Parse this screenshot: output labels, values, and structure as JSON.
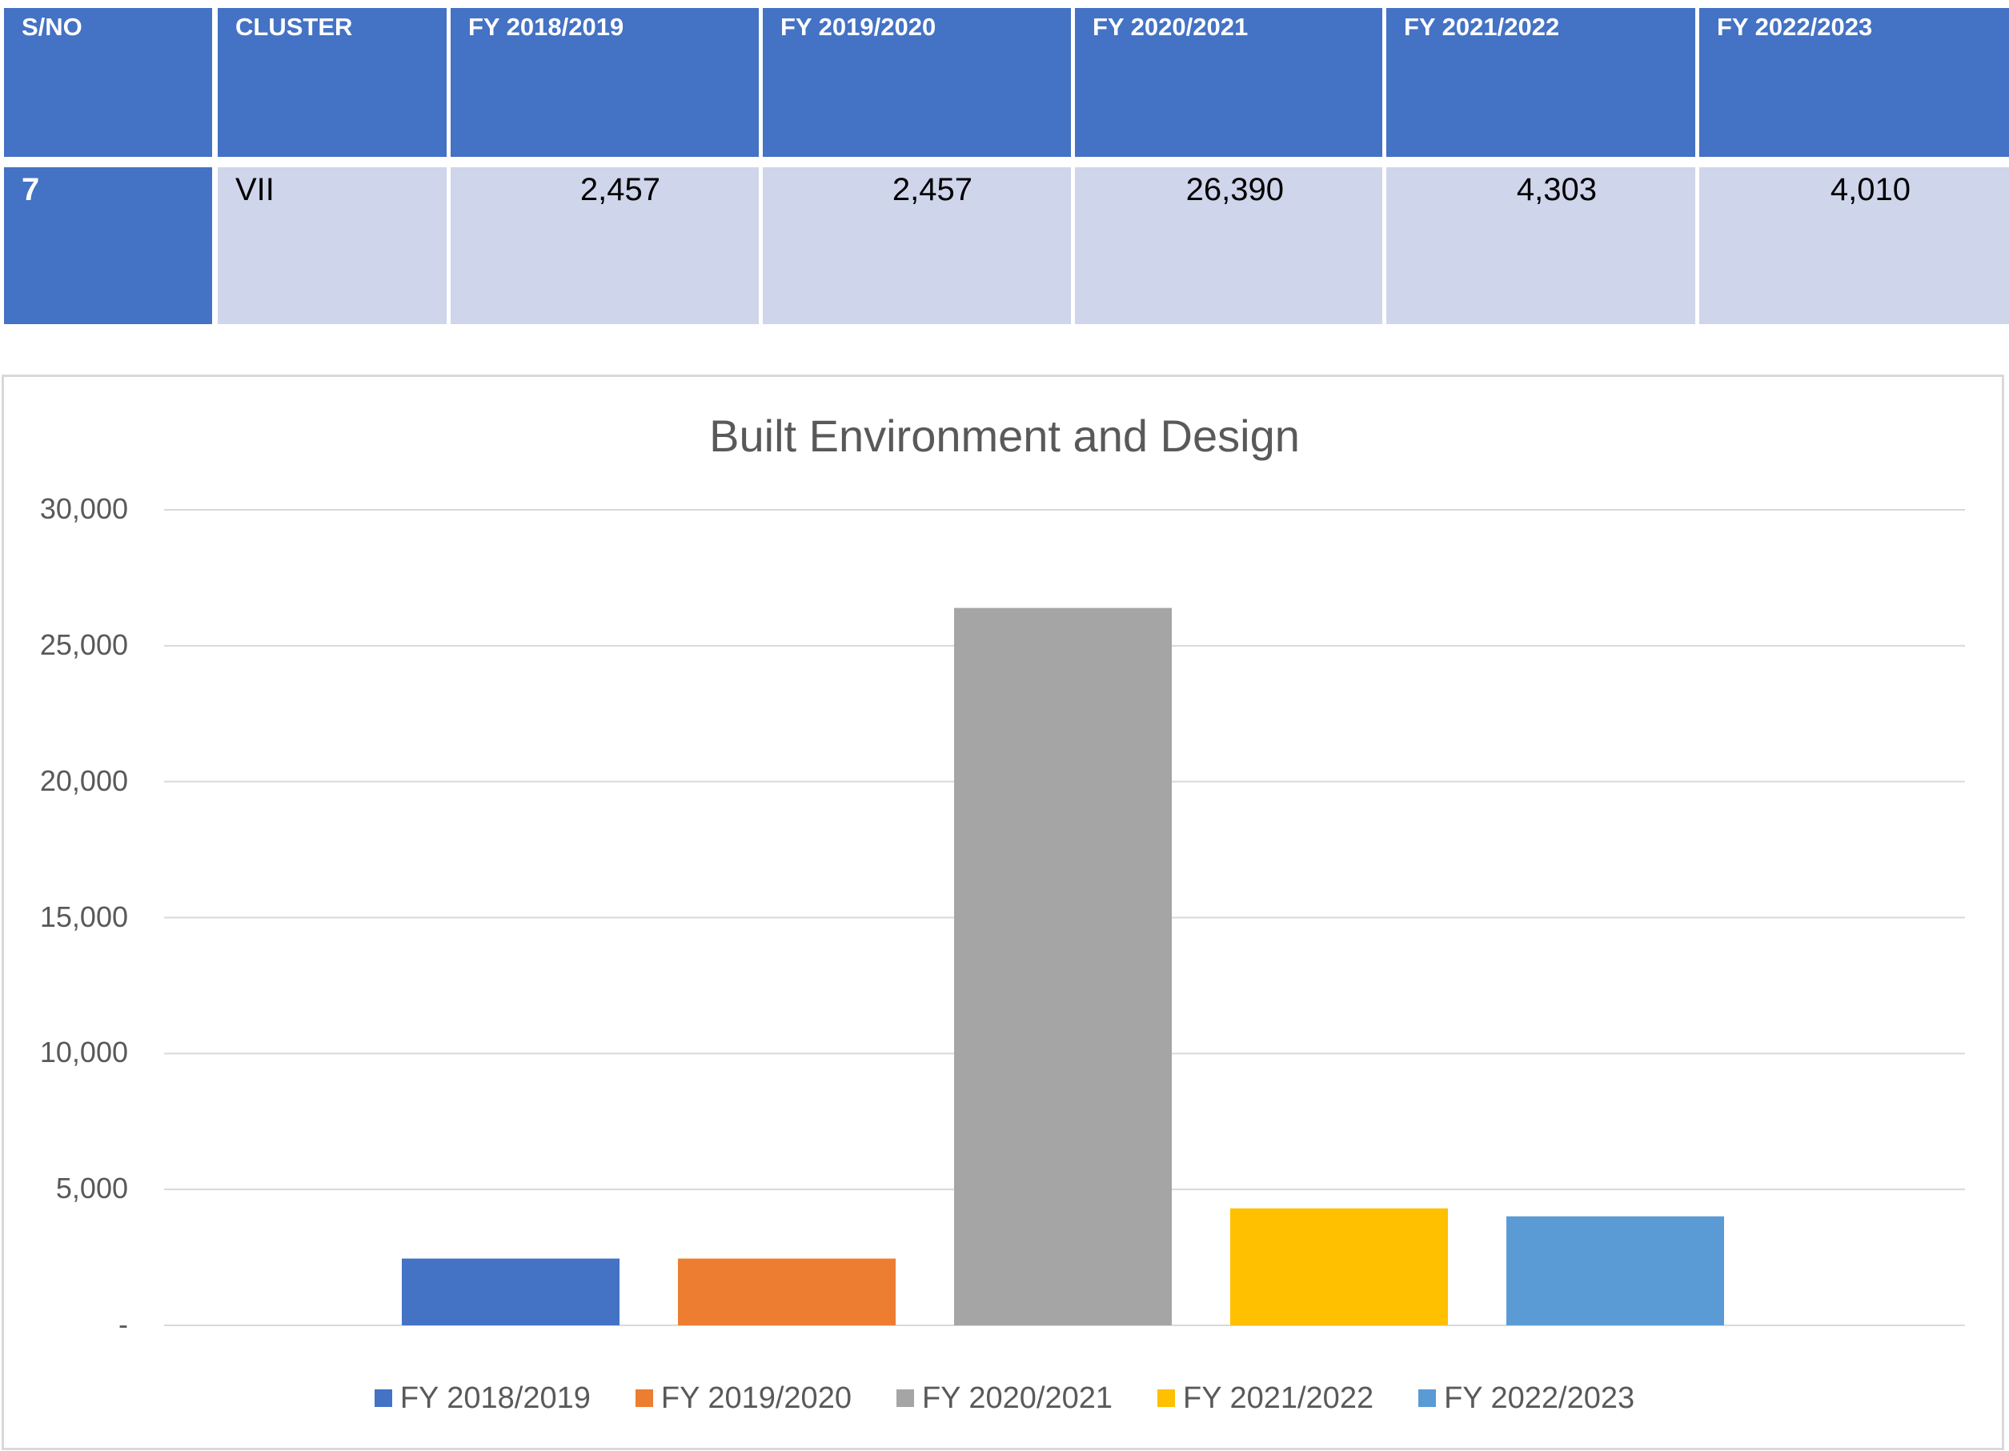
{
  "table": {
    "headers": [
      "S/NO",
      "CLUSTER",
      "FY 2018/2019",
      "FY 2019/2020",
      "FY 2020/2021",
      "FY 2021/2022",
      "FY 2022/2023"
    ],
    "row": [
      "7",
      "VII",
      "2,457",
      "2,457",
      "26,390",
      "4,303",
      "4,010"
    ]
  },
  "chart_data": {
    "type": "bar",
    "title": "Built Environment and Design",
    "xlabel": "",
    "ylabel": "",
    "ylim": [
      0,
      30000
    ],
    "yticks": [
      "-",
      "5,000",
      "10,000",
      "15,000",
      "20,000",
      "25,000",
      "30,000"
    ],
    "grid": true,
    "legend_position": "bottom",
    "series": [
      {
        "name": "FY 2018/2019",
        "value": 2457,
        "color": "#4472C4"
      },
      {
        "name": "FY 2019/2020",
        "value": 2457,
        "color": "#ED7D31"
      },
      {
        "name": "FY 2020/2021",
        "value": 26390,
        "color": "#A5A5A5"
      },
      {
        "name": "FY 2021/2022",
        "value": 4303,
        "color": "#FFC000"
      },
      {
        "name": "FY 2022/2023",
        "value": 4010,
        "color": "#5B9BD5"
      }
    ]
  }
}
